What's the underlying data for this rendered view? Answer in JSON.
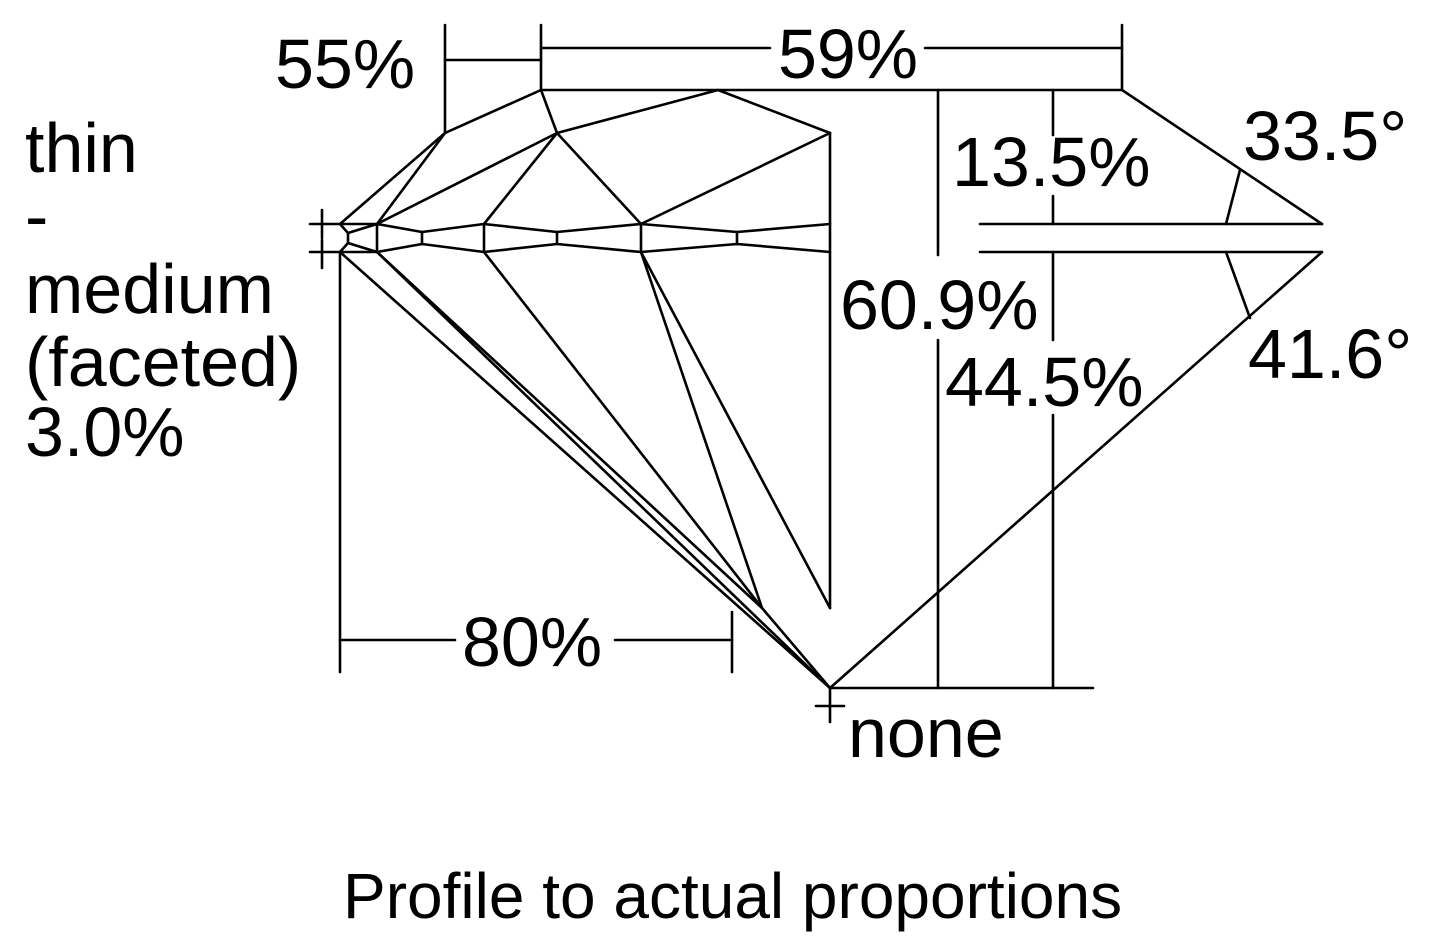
{
  "labels": {
    "crown_height_dim": "55%",
    "table_dim": "59%",
    "girdle_thin": "thin",
    "girdle_dash": "-",
    "girdle_medium": "medium",
    "girdle_faceted": "(faceted)",
    "girdle_pct": "3.0%",
    "crown_height_pct": "13.5%",
    "crown_angle": "33.5°",
    "total_depth": "60.9%",
    "pavilion_depth": "44.5%",
    "pavilion_angle": "41.6°",
    "lower_half_length": "80%",
    "culet": "none"
  },
  "caption": "Profile to actual proportions",
  "colors": {
    "stroke": "#000000",
    "background": "#ffffff"
  }
}
